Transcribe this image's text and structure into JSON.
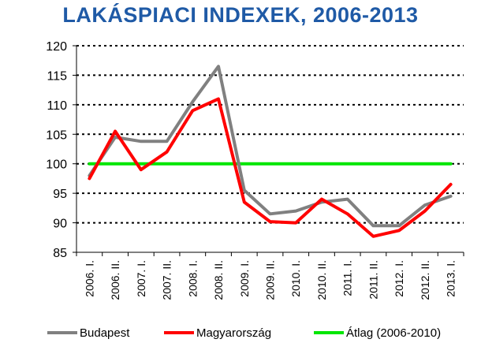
{
  "chart_data": {
    "type": "line",
    "title": "LAKÁSPIACI INDEXEK, 2006-2013",
    "ylim": [
      85,
      120
    ],
    "yticks": [
      85,
      90,
      95,
      100,
      105,
      110,
      115,
      120
    ],
    "categories": [
      "2006. I.",
      "2006. II.",
      "2007. I.",
      "2007. II.",
      "2008. I.",
      "2008. II.",
      "2009. I.",
      "2009. II.",
      "2010. I.",
      "2010. II.",
      "2011. I.",
      "2011. II.",
      "2012. I.",
      "2012. II.",
      "2013. I."
    ],
    "grid": "horizontal dotted",
    "legend_position": "bottom",
    "series": [
      {
        "name": "Budapest",
        "color": "#808080",
        "values": [
          98,
          104.5,
          103.8,
          103.8,
          110.5,
          116.5,
          95.5,
          91.5,
          92,
          93.5,
          94,
          89.5,
          89.5,
          93,
          94.5
        ]
      },
      {
        "name": "Magyarország",
        "color": "#ff0000",
        "values": [
          97.5,
          105.5,
          99,
          102,
          109,
          111,
          93.5,
          90.2,
          90,
          94,
          91.5,
          87.7,
          88.7,
          92,
          96.5
        ]
      },
      {
        "name": "Átlag (2006-2010)",
        "color": "#00e600",
        "values": [
          100,
          100,
          100,
          100,
          100,
          100,
          100,
          100,
          100,
          100,
          100,
          100,
          100,
          100,
          100
        ]
      }
    ]
  }
}
